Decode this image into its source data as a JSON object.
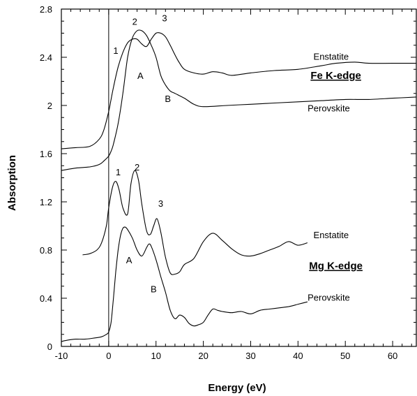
{
  "chart_data": {
    "type": "line",
    "title": "",
    "xlabel": "Energy (eV)",
    "ylabel": "Absorption",
    "xlim": [
      -10,
      65
    ],
    "ylim": [
      0,
      2.8
    ],
    "xticks": [
      -10,
      0,
      10,
      20,
      30,
      40,
      50,
      60
    ],
    "yticks": [
      0,
      0.4,
      0.8,
      1.2,
      1.6,
      2,
      2.4,
      2.8
    ],
    "xtick_labels": [
      "-10",
      "0",
      "10",
      "20",
      "30",
      "40",
      "50",
      "60"
    ],
    "ytick_labels": [
      "0",
      "0.4",
      "0.8",
      "1.2",
      "1.6",
      "2",
      "2.4",
      "2.8"
    ],
    "grid": false,
    "vertical_reference_x": 0,
    "series": [
      {
        "x": [
          -10,
          -7,
          -4,
          -2,
          -1,
          0,
          0.5,
          1,
          2,
          3,
          4,
          5,
          6,
          7,
          8,
          9,
          10,
          11,
          12,
          13,
          14,
          15,
          16,
          18,
          20,
          22,
          24,
          26,
          30,
          35,
          40,
          45,
          48,
          52,
          55,
          60,
          65
        ],
        "y": [
          1.64,
          1.65,
          1.66,
          1.72,
          1.8,
          1.95,
          2.05,
          2.15,
          2.32,
          2.44,
          2.52,
          2.55,
          2.55,
          2.51,
          2.49,
          2.55,
          2.6,
          2.6,
          2.57,
          2.5,
          2.42,
          2.35,
          2.3,
          2.27,
          2.26,
          2.28,
          2.27,
          2.25,
          2.27,
          2.29,
          2.3,
          2.33,
          2.35,
          2.36,
          2.35,
          2.35,
          2.35
        ]
      },
      {
        "x": [
          -10,
          -7,
          -4,
          -2,
          -1,
          0,
          0.5,
          1,
          2,
          3,
          4,
          5,
          6,
          7,
          8,
          9,
          10,
          11,
          12,
          13,
          14,
          16,
          18,
          20,
          25,
          30,
          35,
          40,
          45,
          50,
          55,
          60,
          65
        ],
        "y": [
          1.46,
          1.48,
          1.49,
          1.51,
          1.54,
          1.58,
          1.62,
          1.68,
          1.85,
          2.1,
          2.4,
          2.56,
          2.62,
          2.62,
          2.58,
          2.5,
          2.4,
          2.25,
          2.17,
          2.12,
          2.1,
          2.06,
          2.01,
          1.99,
          2.0,
          2.01,
          2.02,
          2.03,
          2.04,
          2.05,
          2.05,
          2.06,
          2.07
        ]
      },
      {
        "x": [
          -5.5,
          -4,
          -2.5,
          -1.5,
          -0.5,
          0,
          0.8,
          1.5,
          2.2,
          3,
          4,
          4.7,
          5.5,
          6.3,
          7,
          8,
          8.8,
          9.5,
          10.2,
          11,
          12,
          13,
          14,
          15,
          16,
          18,
          20,
          22,
          24,
          26,
          28,
          30,
          32,
          34,
          36,
          38,
          40,
          42
        ],
        "y": [
          0.76,
          0.77,
          0.8,
          0.86,
          1.0,
          1.15,
          1.32,
          1.37,
          1.3,
          1.15,
          1.1,
          1.35,
          1.46,
          1.38,
          1.18,
          0.96,
          0.93,
          1.0,
          1.06,
          0.95,
          0.74,
          0.61,
          0.6,
          0.62,
          0.68,
          0.73,
          0.87,
          0.94,
          0.88,
          0.81,
          0.76,
          0.75,
          0.77,
          0.8,
          0.83,
          0.87,
          0.84,
          0.86
        ]
      },
      {
        "x": [
          -10,
          -9,
          -7,
          -5,
          -3,
          -1.5,
          -0.5,
          0,
          0.5,
          1,
          1.5,
          2,
          2.5,
          3,
          3.5,
          4,
          5,
          6,
          7,
          8,
          8.5,
          9,
          10,
          11,
          12,
          13,
          14,
          15,
          16,
          17,
          18,
          19,
          20,
          21,
          22,
          23,
          24,
          26,
          28,
          30,
          32,
          34,
          36,
          38,
          40,
          42
        ],
        "y": [
          0.04,
          0.05,
          0.06,
          0.06,
          0.07,
          0.08,
          0.1,
          0.12,
          0.2,
          0.4,
          0.62,
          0.8,
          0.92,
          0.98,
          0.99,
          0.97,
          0.9,
          0.8,
          0.75,
          0.82,
          0.85,
          0.83,
          0.72,
          0.58,
          0.45,
          0.3,
          0.23,
          0.26,
          0.24,
          0.19,
          0.17,
          0.18,
          0.2,
          0.26,
          0.31,
          0.3,
          0.29,
          0.28,
          0.29,
          0.27,
          0.3,
          0.31,
          0.32,
          0.33,
          0.35,
          0.37
        ]
      }
    ],
    "annotations": [
      {
        "text": "1",
        "x": 1.5,
        "y": 2.43
      },
      {
        "text": "2",
        "x": 5.5,
        "y": 2.67
      },
      {
        "text": "3",
        "x": 11.8,
        "y": 2.7
      },
      {
        "text": "Enstatite",
        "x": 47,
        "y": 2.38
      },
      {
        "text": "Fe K-edge",
        "x": 48,
        "y": 2.22
      },
      {
        "text": "A",
        "x": 6.7,
        "y": 2.22
      },
      {
        "text": "B",
        "x": 12.5,
        "y": 2.03
      },
      {
        "text": "Perovskite",
        "x": 46.5,
        "y": 1.95
      },
      {
        "text": "1",
        "x": 2,
        "y": 1.42
      },
      {
        "text": "2",
        "x": 6,
        "y": 1.46
      },
      {
        "text": "3",
        "x": 11,
        "y": 1.16
      },
      {
        "text": "Enstatite",
        "x": 47,
        "y": 0.9
      },
      {
        "text": "Mg K-edge",
        "x": 48,
        "y": 0.64
      },
      {
        "text": "A",
        "x": 4.3,
        "y": 0.69
      },
      {
        "text": "B",
        "x": 9.5,
        "y": 0.45
      },
      {
        "text": "Perovskite",
        "x": 46.5,
        "y": 0.38
      }
    ]
  }
}
